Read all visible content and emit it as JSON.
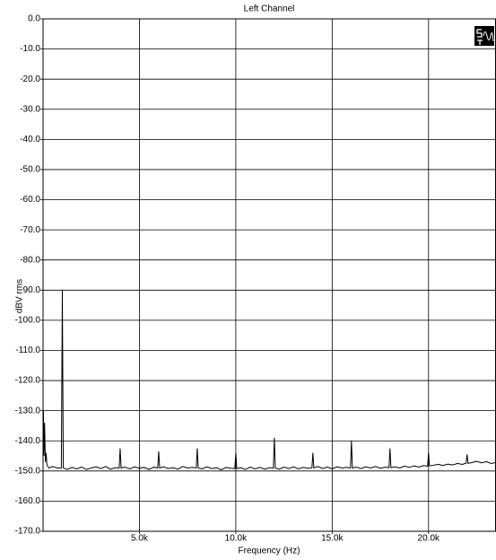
{
  "chart_data": {
    "type": "line",
    "title": "Left Channel",
    "x_label": "Frequency (Hz)",
    "y_label": "dBV rms",
    "color": "#000000",
    "grid": true,
    "xlim": [
      0,
      23500
    ],
    "ylim": [
      -170,
      0
    ],
    "xticks": [
      {
        "value": 5000,
        "label": "5.0k"
      },
      {
        "value": 10000,
        "label": "10.0k"
      },
      {
        "value": 15000,
        "label": "15.0k"
      },
      {
        "value": 20000,
        "label": "20.0k"
      }
    ],
    "yticks": [
      {
        "value": 0,
        "label": "0.0"
      },
      {
        "value": -10,
        "label": "-10.0"
      },
      {
        "value": -20,
        "label": "-20.0"
      },
      {
        "value": -30,
        "label": "-30.0"
      },
      {
        "value": -40,
        "label": "-40.0"
      },
      {
        "value": -50,
        "label": "-50.0"
      },
      {
        "value": -60,
        "label": "-60.0"
      },
      {
        "value": -70,
        "label": "-70.0"
      },
      {
        "value": -80,
        "label": "-80.0"
      },
      {
        "value": -90,
        "label": "-90.0"
      },
      {
        "value": -100,
        "label": "-100.0"
      },
      {
        "value": -110,
        "label": "-110.0"
      },
      {
        "value": -120,
        "label": "-120.0"
      },
      {
        "value": -130,
        "label": "-130.0"
      },
      {
        "value": -140,
        "label": "-140.0"
      },
      {
        "value": -150,
        "label": "-150.0"
      },
      {
        "value": -160,
        "label": "-160.0"
      },
      {
        "value": -170,
        "label": "-170.0"
      }
    ],
    "x": [
      0,
      20,
      50,
      80,
      120,
      160,
      200,
      300,
      500,
      750,
      950,
      1000,
      1050,
      1250,
      1500,
      1750,
      2000,
      2250,
      2500,
      2750,
      3000,
      3250,
      3500,
      3750,
      3950,
      4000,
      4050,
      4250,
      4500,
      4750,
      5000,
      5250,
      5500,
      5750,
      5950,
      6000,
      6050,
      6250,
      6500,
      6750,
      7000,
      7250,
      7500,
      7750,
      7950,
      8000,
      8050,
      8250,
      8500,
      8750,
      9000,
      9250,
      9500,
      9750,
      9950,
      10000,
      10050,
      10250,
      10500,
      10750,
      11000,
      11250,
      11500,
      11750,
      11950,
      12000,
      12050,
      12250,
      12500,
      12750,
      13000,
      13250,
      13500,
      13750,
      13950,
      14000,
      14050,
      14250,
      14500,
      14750,
      15000,
      15250,
      15500,
      15750,
      15950,
      16000,
      16050,
      16250,
      16500,
      16750,
      17000,
      17250,
      17500,
      17750,
      17950,
      18000,
      18050,
      18250,
      18500,
      18750,
      19000,
      19250,
      19500,
      19750,
      19950,
      20000,
      20050,
      20250,
      20500,
      20750,
      21000,
      21250,
      21500,
      21750,
      21950,
      22000,
      22050,
      22250,
      22500,
      22750,
      23000,
      23250,
      23500
    ],
    "values": [
      -139,
      -130,
      -145,
      -134,
      -147,
      -144,
      -148,
      -149,
      -148.5,
      -149,
      -149,
      -90,
      -149,
      -149.5,
      -148.8,
      -149.3,
      -148.7,
      -149.5,
      -149,
      -148.6,
      -149.2,
      -148.5,
      -149.4,
      -148.9,
      -149,
      -142.5,
      -149,
      -148.7,
      -149.3,
      -148.6,
      -149.1,
      -148.8,
      -149.5,
      -148.7,
      -149,
      -143.5,
      -149,
      -148.6,
      -149.2,
      -148.9,
      -149.4,
      -148.5,
      -149,
      -148.8,
      -149,
      -142.5,
      -149,
      -149.3,
      -148.6,
      -149.2,
      -148.9,
      -149.6,
      -148.8,
      -149.1,
      -149.2,
      -144,
      -149.2,
      -148.9,
      -149.5,
      -148.7,
      -149.3,
      -148.8,
      -149.4,
      -148.9,
      -149,
      -139,
      -149,
      -149.4,
      -148.7,
      -149.2,
      -148.6,
      -149.3,
      -148.8,
      -149.1,
      -149,
      -144,
      -149,
      -148.5,
      -149.2,
      -148.7,
      -149.3,
      -148.6,
      -149,
      -148.8,
      -149,
      -140,
      -149,
      -148.7,
      -149.2,
      -148.6,
      -149,
      -148.5,
      -149.1,
      -148.7,
      -148.9,
      -142.5,
      -148.9,
      -148.6,
      -149,
      -148.4,
      -148.8,
      -148.3,
      -148.7,
      -148.2,
      -148.4,
      -144,
      -148.3,
      -148.1,
      -147.8,
      -148.2,
      -147.7,
      -148,
      -147.5,
      -147.8,
      -147.4,
      -144.5,
      -147.5,
      -147.2,
      -146.8,
      -147.3,
      -146.9,
      -147.5,
      -147.2
    ]
  }
}
